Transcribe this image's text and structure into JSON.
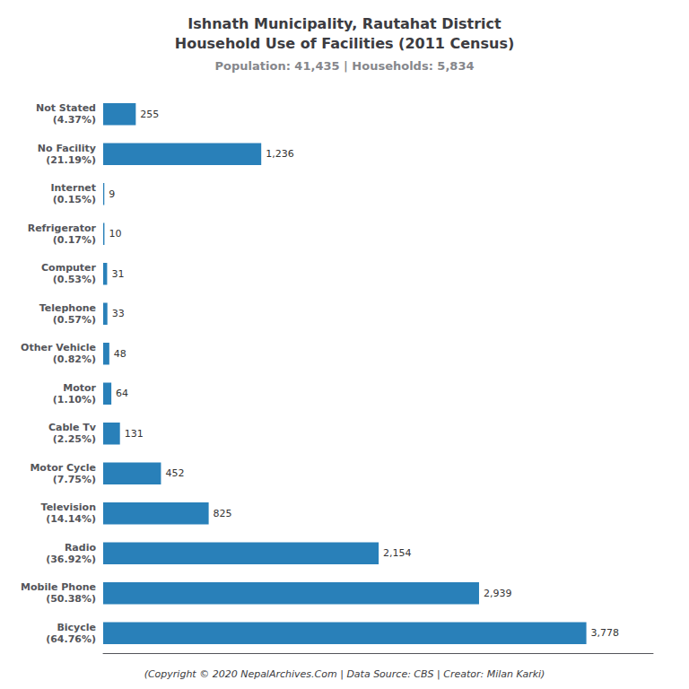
{
  "chart_data": {
    "type": "bar",
    "orientation": "horizontal",
    "title": "Ishnath Municipality, Rautahat District\nHousehold Use of Facilities (2011 Census)",
    "subtitle": "Population: 41,435 | Households: 5,834",
    "annotations": [
      "(Copyright © 2020 NepalArchives.Com | Data Source: CBS | Creator: Milan Karki)"
    ],
    "categories": [
      "Not Stated\n(4.37%)",
      "No Facility\n(21.19%)",
      "Internet\n(0.15%)",
      "Refrigerator\n(0.17%)",
      "Computer\n(0.53%)",
      "Telephone\n(0.57%)",
      "Other Vehicle\n(0.82%)",
      "Motor\n(1.10%)",
      "Cable Tv\n(2.25%)",
      "Motor Cycle\n(7.75%)",
      "Television\n(14.14%)",
      "Radio\n(36.92%)",
      "Mobile Phone\n(50.38%)",
      "Bicycle\n(64.76%)"
    ],
    "values": [
      255,
      1236,
      9,
      10,
      31,
      33,
      48,
      64,
      131,
      452,
      825,
      2154,
      2939,
      3778
    ],
    "value_labels": [
      "255",
      "1,236",
      "9",
      "10",
      "31",
      "33",
      "48",
      "64",
      "131",
      "452",
      "825",
      "2,154",
      "2,939",
      "3,778"
    ],
    "data_labels": true,
    "color": "#2980b9",
    "xlim": [
      0,
      4300
    ],
    "tick_labels": "y",
    "grid": false
  }
}
